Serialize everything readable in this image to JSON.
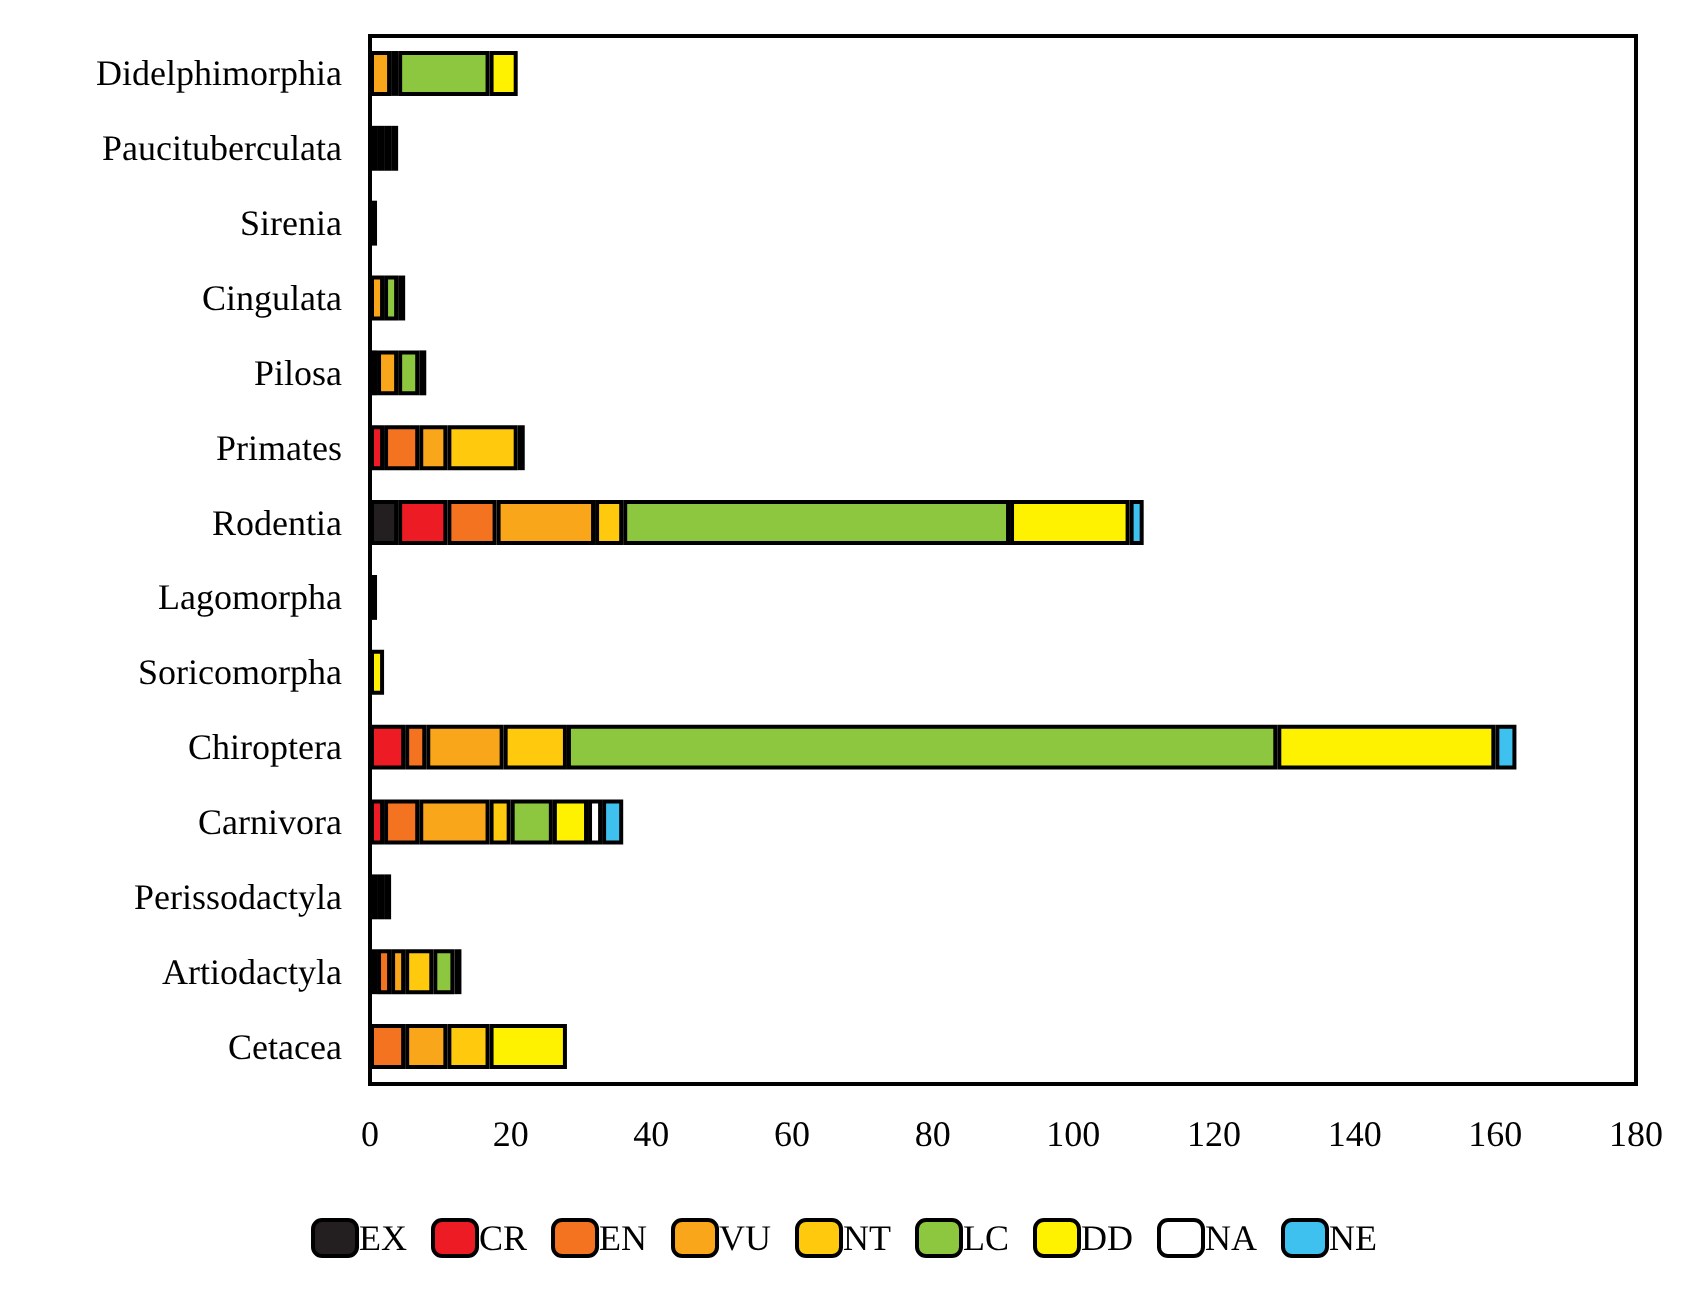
{
  "chart_data": {
    "type": "bar",
    "orientation": "horizontal",
    "stacked": true,
    "grid": false,
    "legend": "bottom",
    "categories": [
      "Didelphimorphia",
      "Paucituberculata",
      "Sirenia",
      "Cingulata",
      "Pilosa",
      "Primates",
      "Rodentia",
      "Lagomorpha",
      "Soricomorpha",
      "Chiroptera",
      "Carnivora",
      "Perissodactyla",
      "Artiodactyla",
      "Cetacea"
    ],
    "xlim": [
      0,
      180
    ],
    "xticks": [
      0,
      20,
      40,
      60,
      80,
      100,
      120,
      140,
      160,
      180
    ],
    "series": [
      {
        "name": "EX",
        "color": "#231f20",
        "values": [
          null,
          null,
          1,
          null,
          null,
          null,
          4,
          null,
          null,
          null,
          null,
          1,
          null,
          null
        ]
      },
      {
        "name": "CR",
        "color": "#ed1c24",
        "values": [
          null,
          null,
          null,
          null,
          1,
          2,
          7,
          null,
          null,
          5,
          2,
          null,
          1,
          null
        ]
      },
      {
        "name": "EN",
        "color": "#f47321",
        "values": [
          null,
          null,
          null,
          null,
          null,
          5,
          7,
          null,
          null,
          3,
          5,
          1,
          2,
          5
        ]
      },
      {
        "name": "VU",
        "color": "#f9a61a",
        "values": [
          3,
          1,
          null,
          2,
          3,
          4,
          14,
          null,
          null,
          11,
          10,
          null,
          2,
          6
        ]
      },
      {
        "name": "NT",
        "color": "#ffc90e",
        "values": [
          1,
          1,
          null,
          null,
          null,
          10,
          4,
          null,
          null,
          9,
          3,
          null,
          4,
          6
        ]
      },
      {
        "name": "LC",
        "color": "#8dc63f",
        "values": [
          13,
          1,
          null,
          2,
          3,
          null,
          55,
          1,
          null,
          101,
          6,
          null,
          3,
          null
        ]
      },
      {
        "name": "DD",
        "color": "#fff200",
        "values": [
          4,
          1,
          null,
          1,
          1,
          1,
          17,
          null,
          2,
          31,
          5,
          1,
          1,
          11
        ]
      },
      {
        "name": "NA",
        "color": "#ffffff",
        "values": [
          null,
          null,
          null,
          null,
          null,
          null,
          null,
          null,
          null,
          null,
          2,
          null,
          null,
          null
        ]
      },
      {
        "name": "NE",
        "color": "#3fc1f0",
        "values": [
          null,
          null,
          null,
          null,
          null,
          null,
          2,
          null,
          null,
          3,
          3,
          null,
          null,
          null
        ]
      }
    ]
  }
}
